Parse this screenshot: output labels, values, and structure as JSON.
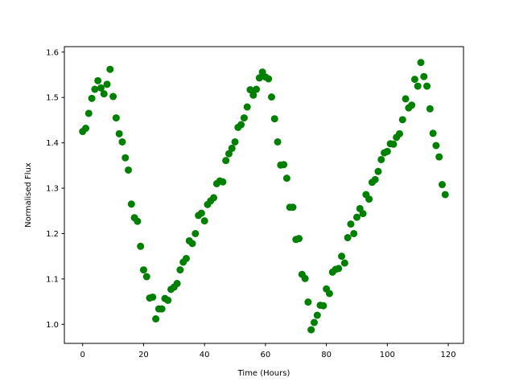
{
  "chart_data": {
    "type": "scatter",
    "title": "",
    "xlabel": "Time (Hours)",
    "ylabel": "Normalised Flux",
    "xlim": [
      -6,
      125
    ],
    "ylim": [
      0.958,
      1.612
    ],
    "xticks": [
      0,
      20,
      40,
      60,
      80,
      100,
      120
    ],
    "yticks": [
      1.0,
      1.1,
      1.2,
      1.3,
      1.4,
      1.5,
      1.6
    ],
    "xtick_labels": [
      "0",
      "20",
      "40",
      "60",
      "80",
      "100",
      "120"
    ],
    "ytick_labels": [
      "1.0",
      "1.1",
      "1.2",
      "1.3",
      "1.4",
      "1.5",
      "1.6"
    ],
    "grid": false,
    "marker_color": "#008000",
    "series": [
      {
        "x": [
          0,
          1,
          2,
          3,
          4,
          5,
          6,
          7,
          8,
          9,
          10,
          11,
          12,
          13,
          14,
          15,
          16,
          17,
          18,
          19,
          20,
          21,
          22,
          23,
          24,
          25,
          26,
          27,
          28,
          29,
          30,
          31,
          32,
          33,
          34,
          35,
          36,
          37,
          38,
          39,
          40,
          41,
          42,
          43,
          44,
          45,
          46,
          47,
          48,
          49,
          50,
          51,
          52,
          53,
          54,
          55,
          56,
          57,
          58,
          59,
          60,
          61,
          62,
          63,
          64,
          65,
          66,
          67,
          68,
          69,
          70,
          71,
          72,
          73,
          74,
          75,
          76,
          77,
          78,
          79,
          80,
          81,
          82,
          83,
          84,
          85,
          86,
          87,
          88,
          89,
          90,
          91,
          92,
          93,
          94,
          95,
          96,
          97,
          98,
          99,
          100,
          101,
          102,
          103,
          104,
          105,
          106,
          107,
          108,
          109,
          110,
          111,
          112,
          113,
          114,
          115,
          116,
          117,
          118,
          119
        ],
        "y": [
          1.425,
          1.432,
          1.465,
          1.498,
          1.518,
          1.537,
          1.521,
          1.508,
          1.529,
          1.562,
          1.502,
          1.455,
          1.42,
          1.402,
          1.367,
          1.34,
          1.265,
          1.235,
          1.227,
          1.172,
          1.12,
          1.105,
          1.058,
          1.06,
          1.012,
          1.034,
          1.034,
          1.057,
          1.053,
          1.077,
          1.082,
          1.09,
          1.12,
          1.137,
          1.145,
          1.184,
          1.178,
          1.2,
          1.24,
          1.245,
          1.228,
          1.264,
          1.272,
          1.279,
          1.31,
          1.316,
          1.314,
          1.361,
          1.376,
          1.388,
          1.402,
          1.434,
          1.44,
          1.455,
          1.479,
          1.517,
          1.505,
          1.518,
          1.543,
          1.556,
          1.545,
          1.541,
          1.501,
          1.453,
          1.402,
          1.351,
          1.352,
          1.322,
          1.258,
          1.258,
          1.187,
          1.189,
          1.11,
          1.101,
          1.049,
          0.988,
          1.004,
          1.02,
          1.042,
          1.041,
          1.078,
          1.068,
          1.115,
          1.121,
          1.123,
          1.15,
          1.135,
          1.191,
          1.221,
          1.2,
          1.236,
          1.255,
          1.244,
          1.286,
          1.276,
          1.313,
          1.319,
          1.337,
          1.363,
          1.378,
          1.381,
          1.398,
          1.397,
          1.412,
          1.42,
          1.451,
          1.497,
          1.477,
          1.483,
          1.54,
          1.525,
          1.577,
          1.546,
          1.525,
          1.475,
          1.421,
          1.394,
          1.369,
          1.308,
          1.286
        ]
      }
    ]
  }
}
